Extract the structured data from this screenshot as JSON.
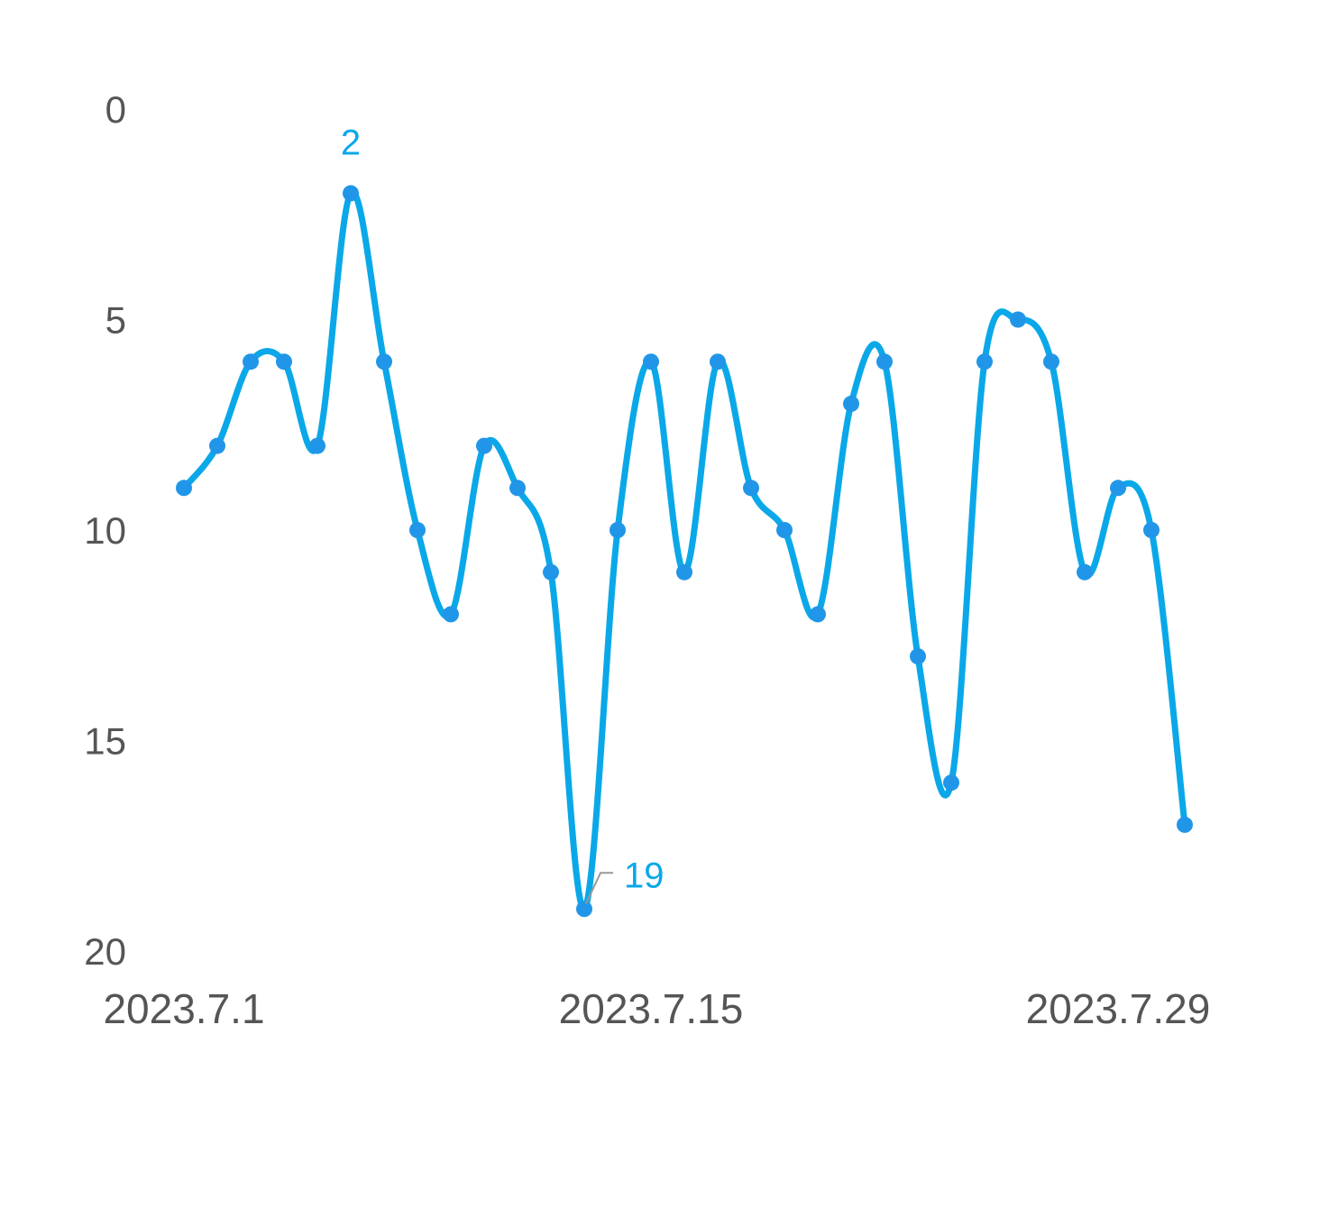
{
  "chart_data": {
    "type": "line",
    "x": [
      "2023.7.1",
      "2023.7.2",
      "2023.7.3",
      "2023.7.4",
      "2023.7.5",
      "2023.7.6",
      "2023.7.7",
      "2023.7.8",
      "2023.7.9",
      "2023.7.10",
      "2023.7.11",
      "2023.7.12",
      "2023.7.13",
      "2023.7.14",
      "2023.7.15",
      "2023.7.16",
      "2023.7.17",
      "2023.7.18",
      "2023.7.19",
      "2023.7.20",
      "2023.7.21",
      "2023.7.22",
      "2023.7.23",
      "2023.7.24",
      "2023.7.25",
      "2023.7.26",
      "2023.7.27",
      "2023.7.28",
      "2023.7.29",
      "2023.7.30",
      "2023.7.31"
    ],
    "values": [
      9,
      8,
      6,
      6,
      8,
      2,
      6,
      10,
      12,
      8,
      9,
      11,
      19,
      10,
      6,
      11,
      6,
      9,
      10,
      12,
      7,
      6,
      13,
      16,
      6,
      5,
      6,
      11,
      9,
      10,
      17
    ],
    "x_tick_labels": [
      "2023.7.1",
      "2023.7.15",
      "2023.7.29"
    ],
    "x_tick_indices": [
      0,
      14,
      28
    ],
    "y_ticks": [
      "0",
      "5",
      "10",
      "15",
      "20"
    ],
    "ylim": [
      0,
      20
    ],
    "y_inverted": true,
    "grid": false,
    "legend": "none",
    "annotations": [
      {
        "index": 5,
        "label": "2"
      },
      {
        "index": 12,
        "label": "19"
      }
    ],
    "colors": {
      "line": "#0aa8e8",
      "marker": "#2196e8",
      "label": "#0aa8e8",
      "leader": "#999999",
      "tick_text": "#555555"
    }
  }
}
